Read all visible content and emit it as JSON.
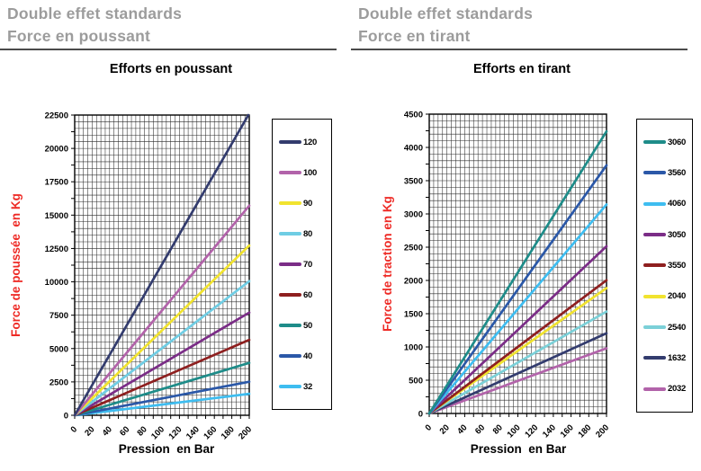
{
  "panels": [
    {
      "header_line1": "Double effet standards",
      "header_line2": "Force en poussant",
      "chart_title": "Efforts en poussant",
      "y_axis_label": "Force de poussée  en Kg",
      "x_axis_label": "Pression  en Bar"
    },
    {
      "header_line1": "Double effet standards",
      "header_line2": "Force en tirant",
      "chart_title": "Efforts en tirant",
      "y_axis_label": "Force de traction en Kg",
      "x_axis_label": "Pression  en Bar"
    }
  ],
  "colors": {
    "header_gray": "#9c9c9c",
    "axis_label_red": "#ee2b26",
    "grid_black": "#2b2b2b"
  },
  "chart_data": [
    {
      "type": "line",
      "title": "Efforts en poussant",
      "xlabel": "Pression  en Bar",
      "ylabel": "Force de poussée  en Kg",
      "xlim": [
        0,
        200
      ],
      "ylim": [
        0,
        22500
      ],
      "x_tick_labels": [
        0,
        20,
        40,
        60,
        80,
        100,
        120,
        140,
        160,
        180,
        200
      ],
      "y_tick_labels": [
        0,
        2500,
        5000,
        7500,
        10000,
        12500,
        15000,
        17500,
        20000,
        22500
      ],
      "x_minor_step": 5,
      "y_minor_step": 500,
      "x_tick_step": 10,
      "y_tick_step": 1250,
      "grid": true,
      "legend_position": "right",
      "x": [
        0,
        200
      ],
      "series": [
        {
          "name": "120",
          "color": "#333c6e",
          "values": [
            0,
            22620
          ]
        },
        {
          "name": "100",
          "color": "#b263aa",
          "values": [
            0,
            15708
          ]
        },
        {
          "name": "90",
          "color": "#f1e32f",
          "values": [
            0,
            12723
          ]
        },
        {
          "name": "80",
          "color": "#6fcde4",
          "values": [
            0,
            10053
          ]
        },
        {
          "name": "70",
          "color": "#7b2d87",
          "values": [
            0,
            7697
          ]
        },
        {
          "name": "60",
          "color": "#8e1f1f",
          "values": [
            0,
            5655
          ]
        },
        {
          "name": "50",
          "color": "#1e8c89",
          "values": [
            0,
            3927
          ]
        },
        {
          "name": "40",
          "color": "#2b58a8",
          "values": [
            0,
            2513
          ]
        },
        {
          "name": "32",
          "color": "#3ebdf0",
          "values": [
            0,
            1608
          ]
        }
      ]
    },
    {
      "type": "line",
      "title": "Efforts en tirant",
      "xlabel": "Pression  en Bar",
      "ylabel": "Force de traction en Kg",
      "xlim": [
        0,
        200
      ],
      "ylim": [
        0,
        4500
      ],
      "x_tick_labels": [
        0,
        20,
        40,
        60,
        80,
        100,
        120,
        140,
        160,
        180,
        200
      ],
      "y_tick_labels": [
        0,
        500,
        1000,
        1500,
        2000,
        2500,
        3000,
        3500,
        4000,
        4500
      ],
      "x_minor_step": 5,
      "y_minor_step": 100,
      "x_tick_step": 10,
      "y_tick_step": 250,
      "grid": true,
      "legend_position": "right",
      "x": [
        0,
        200
      ],
      "series": [
        {
          "name": "3060",
          "color": "#1e8c89",
          "values": [
            0,
            4241
          ]
        },
        {
          "name": "3560",
          "color": "#2b58a8",
          "values": [
            0,
            3731
          ]
        },
        {
          "name": "4060",
          "color": "#3ebdf0",
          "values": [
            0,
            3142
          ]
        },
        {
          "name": "3050",
          "color": "#7b2d87",
          "values": [
            0,
            2513
          ]
        },
        {
          "name": "3550",
          "color": "#8e1f1f",
          "values": [
            0,
            2003
          ]
        },
        {
          "name": "2040",
          "color": "#f1e32f",
          "values": [
            0,
            1885
          ]
        },
        {
          "name": "2540",
          "color": "#7bd0d8",
          "values": [
            0,
            1532
          ]
        },
        {
          "name": "1632",
          "color": "#333c6e",
          "values": [
            0,
            1206
          ]
        },
        {
          "name": "2032",
          "color": "#b263aa",
          "values": [
            0,
            980
          ]
        }
      ]
    }
  ]
}
